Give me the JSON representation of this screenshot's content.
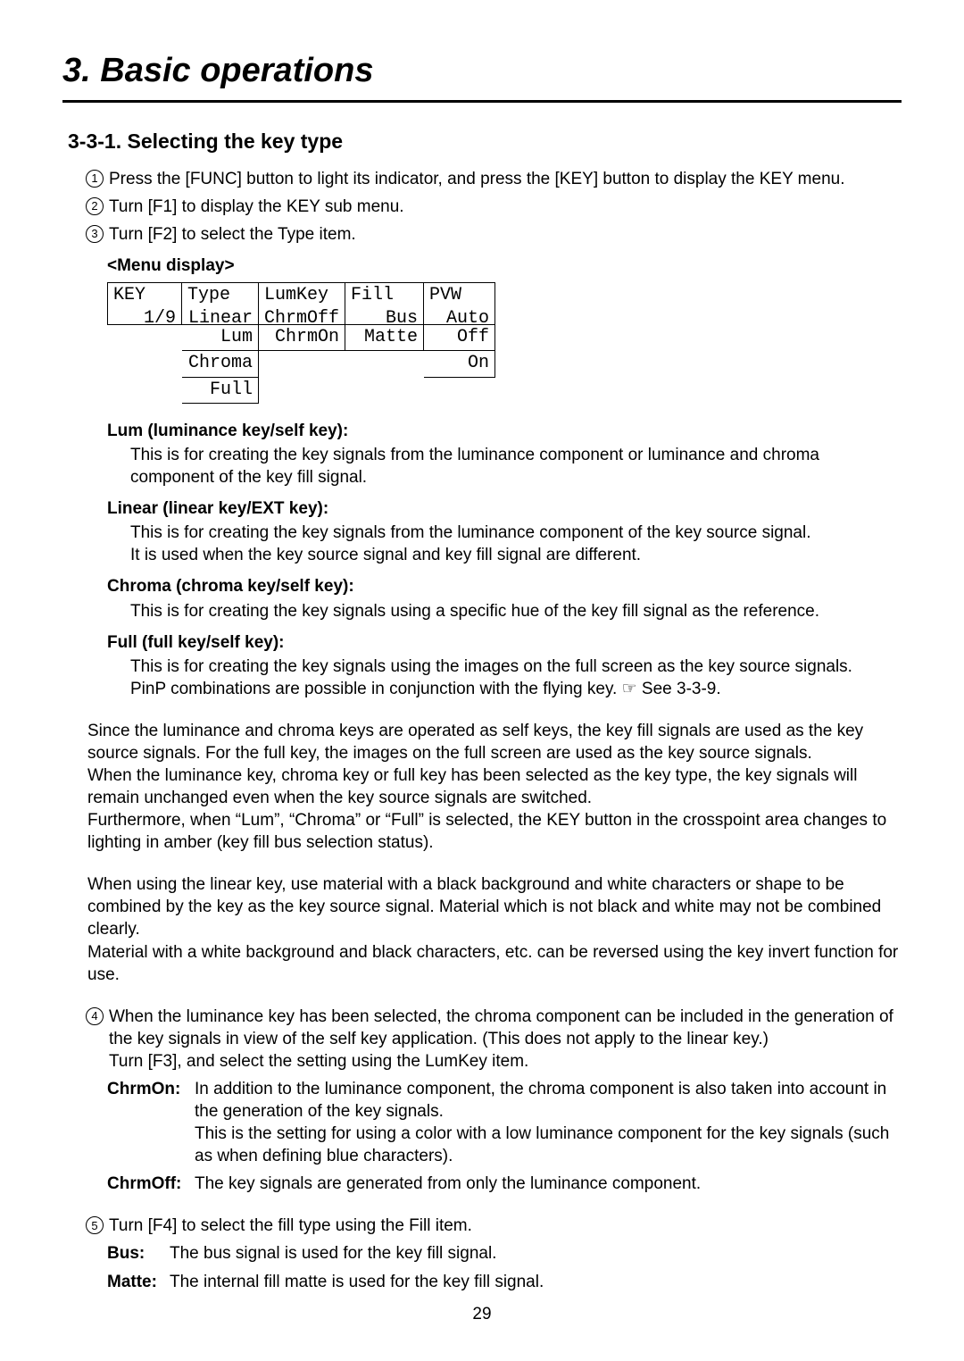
{
  "chapter_title": "3. Basic operations",
  "section_title": "3-3-1. Selecting the key type",
  "steps": {
    "s1": "Press the [FUNC] button to light its indicator, and press the [KEY] button to display the KEY menu.",
    "s2": "Turn [F1] to display the KEY sub menu.",
    "s3": "Turn [F2] to select the Type item.",
    "s4": "When the luminance key has been selected, the chroma component can be included in the generation of the key signals in view of the self key application. (This does not apply to the linear key.)",
    "s4b": "Turn [F3], and select the setting using the LumKey item.",
    "s5": "Turn [F4] to select the fill type using the Fill item."
  },
  "menu_label": "<Menu display>",
  "menu": {
    "c1": {
      "h": "KEY",
      "v": "1/9",
      "opts": [
        "",
        "",
        ""
      ]
    },
    "c2": {
      "h": "Type",
      "v": "Linear",
      "opts": [
        "Lum",
        "Chroma",
        "Full"
      ]
    },
    "c3": {
      "h": "LumKey",
      "v": "ChrmOff",
      "opts": [
        "ChrmOn",
        "",
        ""
      ]
    },
    "c4": {
      "h": "Fill",
      "v": "Bus",
      "opts": [
        "Matte",
        "",
        ""
      ]
    },
    "c5": {
      "h": "PVW",
      "v": "Auto",
      "opts": [
        "Off",
        "On",
        ""
      ]
    }
  },
  "defs": {
    "lum_t": "Lum (luminance key/self key):",
    "lum_d": "This is for creating the key signals from the luminance component or luminance and chroma component of the key fill signal.",
    "lin_t": "Linear (linear key/EXT key):",
    "lin_d": "This is for creating the key signals from the luminance component of the key source signal.\nIt is used when the key source signal and key fill signal are different.",
    "chr_t": "Chroma (chroma key/self key):",
    "chr_d": "This is for creating the key signals using a specific hue of the key fill signal as the reference.",
    "ful_t": "Full (full key/self key):",
    "ful_d": "This is for creating the key signals using the images on the full screen as the key source signals.\nPinP combinations are possible in conjunction with the flying key.  ☞ See 3-3-9."
  },
  "para1": "Since the luminance and chroma keys are operated as self keys, the key fill signals are used as the key source signals. For the full key, the images on the full screen are used as the key source signals.\nWhen the luminance key, chroma key or full key has been selected as the key type, the key signals will remain unchanged even when the key source signals are switched.\nFurthermore, when “Lum”, “Chroma” or “Full” is selected, the KEY button in the crosspoint area changes to lighting in amber (key fill bus selection status).",
  "para2": "When using the linear key, use material with a black background and white characters or shape to be combined by the key as the key source signal. Material which is not black and white may not be combined clearly.\nMaterial with a white background and black characters, etc. can be reversed using the key invert function for use.",
  "chrmOn_k": "ChrmOn:",
  "chrmOn_v": "In addition to the luminance component, the chroma component is also taken into account in the generation of the key signals.\nThis is the setting for using a color with a low luminance component for the key signals (such as when defining blue characters).",
  "chrmOff_k": "ChrmOff:",
  "chrmOff_v": "The key signals are generated from only the luminance component.",
  "bus_k": "Bus:",
  "bus_v": "The bus signal is used for the key fill signal.",
  "matte_k": "Matte:",
  "matte_v": "The internal fill matte is used for the key fill signal.",
  "page_number": "29"
}
